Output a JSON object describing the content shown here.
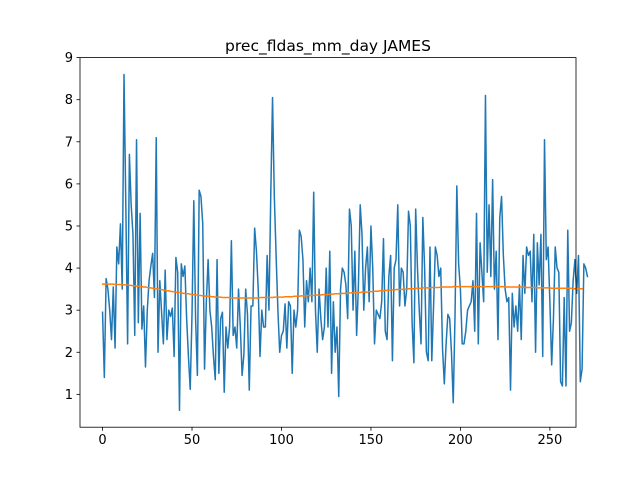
{
  "chart_data": {
    "type": "line",
    "title": "prec_fldas_mm_day JAMES",
    "xlabel": "",
    "ylabel": "",
    "xlim": [
      -12.6,
      264.6
    ],
    "ylim": [
      0.22,
      9.0
    ],
    "x_ticks": [
      0,
      50,
      100,
      150,
      200,
      250
    ],
    "y_ticks": [
      1,
      2,
      3,
      4,
      5,
      6,
      7,
      8,
      9
    ],
    "grid": false,
    "legend": "none",
    "series": [
      {
        "color": "#1f77b4",
        "values": [
          2.95,
          1.4,
          3.75,
          3.5,
          3.0,
          2.3,
          3.55,
          2.1,
          4.5,
          4.1,
          5.05,
          3.5,
          8.6,
          5.5,
          2.2,
          6.7,
          5.5,
          4.8,
          2.4,
          7.05,
          2.7,
          5.3,
          2.55,
          3.1,
          1.65,
          3.0,
          3.7,
          4.05,
          4.35,
          3.3,
          7.1,
          2.0,
          3.7,
          2.95,
          2.2,
          3.95,
          2.3,
          3.0,
          2.85,
          3.05,
          1.9,
          4.25,
          3.9,
          0.62,
          4.1,
          3.8,
          4.05,
          2.8,
          1.9,
          1.12,
          2.9,
          5.6,
          2.8,
          1.45,
          5.85,
          5.7,
          5.05,
          1.6,
          3.2,
          4.2,
          3.0,
          2.6,
          1.9,
          1.35,
          4.2,
          1.5,
          2.8,
          2.95,
          1.05,
          2.6,
          2.1,
          2.6,
          4.65,
          2.4,
          2.6,
          2.1,
          3.5,
          2.6,
          1.45,
          1.95,
          3.5,
          2.9,
          1.1,
          3.1,
          3.1,
          4.95,
          4.4,
          3.5,
          1.9,
          3.0,
          2.6,
          2.6,
          4.3,
          3.0,
          5.7,
          8.05,
          5.7,
          4.3,
          3.0,
          2.0,
          2.4,
          2.5,
          3.15,
          2.1,
          3.2,
          3.1,
          1.5,
          3.0,
          2.6,
          3.0,
          4.9,
          4.75,
          4.2,
          2.6,
          3.7,
          3.2,
          4.0,
          3.2,
          5.8,
          3.0,
          2.0,
          3.5,
          2.8,
          2.3,
          2.6,
          4.0,
          2.6,
          4.4,
          1.5,
          3.2,
          2.0,
          2.6,
          0.95,
          3.5,
          4.0,
          3.9,
          3.6,
          2.8,
          5.4,
          5.0,
          3.0,
          4.4,
          2.4,
          3.6,
          5.5,
          4.8,
          3.0,
          4.0,
          4.5,
          3.2,
          5.0,
          4.0,
          2.2,
          3.0,
          2.9,
          2.8,
          3.2,
          4.7,
          2.5,
          2.3,
          3.8,
          4.3,
          1.8,
          4.0,
          4.2,
          5.5,
          3.1,
          4.0,
          3.9,
          3.1,
          3.5,
          5.35,
          5.0,
          2.7,
          1.75,
          5.4,
          4.0,
          3.0,
          2.2,
          5.2,
          4.0,
          2.0,
          1.8,
          4.5,
          1.8,
          3.1,
          4.5,
          4.3,
          3.8,
          4.0,
          2.1,
          1.25,
          2.2,
          2.9,
          2.8,
          2.0,
          0.8,
          2.9,
          5.95,
          4.1,
          3.5,
          2.2,
          2.2,
          2.5,
          3.0,
          3.1,
          3.2,
          3.7,
          2.5,
          5.3,
          2.2,
          4.6,
          3.9,
          3.2,
          8.1,
          3.9,
          5.5,
          3.8,
          6.1,
          3.5,
          4.4,
          2.3,
          5.2,
          5.7,
          4.3,
          3.5,
          3.2,
          3.3,
          1.1,
          3.4,
          2.6,
          3.1,
          2.5,
          3.6,
          2.3,
          4.3,
          3.4,
          4.5,
          4.3,
          4.4,
          3.2,
          4.8,
          2.0,
          4.6,
          3.6,
          4.8,
          1.9,
          7.05,
          4.2,
          4.5,
          3.2,
          1.7,
          2.8,
          4.5,
          4.0,
          3.9,
          1.3,
          1.2,
          3.3,
          1.2,
          4.9,
          2.5,
          2.7,
          3.7,
          4.2,
          3.4,
          4.3,
          1.3,
          1.6,
          4.1,
          4.0,
          3.8
        ]
      },
      {
        "color": "#ff7f0e",
        "values": [
          3.62,
          3.62,
          3.62,
          3.62,
          3.62,
          3.62,
          3.62,
          3.61,
          3.61,
          3.61,
          3.61,
          3.61,
          3.6,
          3.6,
          3.6,
          3.59,
          3.59,
          3.58,
          3.58,
          3.57,
          3.57,
          3.56,
          3.56,
          3.55,
          3.55,
          3.54,
          3.53,
          3.53,
          3.52,
          3.51,
          3.51,
          3.5,
          3.49,
          3.49,
          3.48,
          3.47,
          3.46,
          3.46,
          3.45,
          3.44,
          3.44,
          3.43,
          3.42,
          3.42,
          3.41,
          3.4,
          3.4,
          3.39,
          3.39,
          3.38,
          3.37,
          3.37,
          3.36,
          3.36,
          3.35,
          3.35,
          3.34,
          3.34,
          3.33,
          3.33,
          3.33,
          3.32,
          3.32,
          3.31,
          3.31,
          3.31,
          3.31,
          3.3,
          3.3,
          3.3,
          3.3,
          3.3,
          3.29,
          3.29,
          3.29,
          3.29,
          3.29,
          3.29,
          3.29,
          3.29,
          3.29,
          3.29,
          3.29,
          3.29,
          3.29,
          3.29,
          3.29,
          3.29,
          3.3,
          3.3,
          3.3,
          3.3,
          3.3,
          3.3,
          3.3,
          3.3,
          3.31,
          3.31,
          3.31,
          3.31,
          3.31,
          3.31,
          3.32,
          3.32,
          3.32,
          3.32,
          3.32,
          3.33,
          3.33,
          3.33,
          3.33,
          3.34,
          3.34,
          3.34,
          3.34,
          3.35,
          3.35,
          3.35,
          3.35,
          3.36,
          3.36,
          3.36,
          3.36,
          3.37,
          3.37,
          3.37,
          3.37,
          3.38,
          3.38,
          3.38,
          3.39,
          3.39,
          3.39,
          3.39,
          3.4,
          3.4,
          3.4,
          3.4,
          3.41,
          3.41,
          3.41,
          3.41,
          3.42,
          3.42,
          3.42,
          3.43,
          3.43,
          3.43,
          3.43,
          3.44,
          3.44,
          3.44,
          3.45,
          3.45,
          3.45,
          3.46,
          3.46,
          3.46,
          3.47,
          3.47,
          3.47,
          3.48,
          3.48,
          3.48,
          3.49,
          3.49,
          3.49,
          3.49,
          3.5,
          3.5,
          3.5,
          3.51,
          3.51,
          3.51,
          3.51,
          3.52,
          3.52,
          3.52,
          3.52,
          3.53,
          3.53,
          3.53,
          3.53,
          3.53,
          3.54,
          3.54,
          3.54,
          3.54,
          3.54,
          3.55,
          3.55,
          3.55,
          3.55,
          3.55,
          3.55,
          3.55,
          3.56,
          3.56,
          3.56,
          3.56,
          3.56,
          3.56,
          3.56,
          3.56,
          3.56,
          3.56,
          3.56,
          3.56,
          3.56,
          3.56,
          3.56,
          3.56,
          3.56,
          3.56,
          3.56,
          3.56,
          3.56,
          3.56,
          3.56,
          3.56,
          3.56,
          3.56,
          3.56,
          3.56,
          3.56,
          3.55,
          3.55,
          3.55,
          3.55,
          3.55,
          3.55,
          3.55,
          3.55,
          3.55,
          3.55,
          3.55,
          3.54,
          3.54,
          3.54,
          3.54,
          3.54,
          3.54,
          3.54,
          3.53,
          3.53,
          3.53,
          3.53,
          3.53,
          3.53,
          3.53,
          3.53,
          3.52,
          3.52,
          3.52,
          3.52,
          3.52,
          3.52,
          3.52,
          3.52,
          3.52,
          3.52,
          3.52,
          3.52,
          3.51,
          3.51,
          3.51,
          3.51,
          3.51,
          3.51
        ]
      }
    ]
  }
}
